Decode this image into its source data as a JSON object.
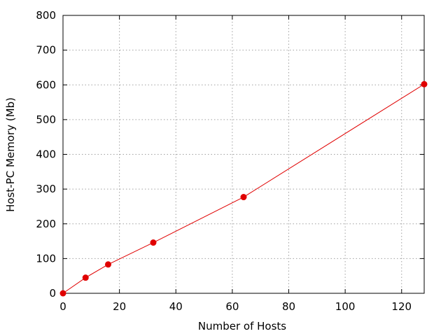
{
  "chart_data": {
    "type": "line",
    "title": "",
    "xlabel": "Number of Hosts",
    "ylabel": "Host-PC Memory (Mb)",
    "xlim": [
      0,
      128
    ],
    "ylim": [
      0,
      800
    ],
    "xticks": [
      0,
      20,
      40,
      60,
      80,
      100,
      120
    ],
    "yticks": [
      0,
      100,
      200,
      300,
      400,
      500,
      600,
      700,
      800
    ],
    "xtick_labels": [
      "0",
      "20",
      "40",
      "60",
      "80",
      "100",
      "120"
    ],
    "ytick_labels": [
      "0",
      "100",
      "200",
      "300",
      "400",
      "500",
      "600",
      "700",
      "800"
    ],
    "grid": true,
    "series": [
      {
        "x": [
          0,
          8,
          16,
          32,
          64,
          128
        ],
        "y": [
          0,
          45,
          83,
          146,
          277,
          602
        ],
        "color": "#e00000",
        "marker": "circle"
      }
    ]
  }
}
